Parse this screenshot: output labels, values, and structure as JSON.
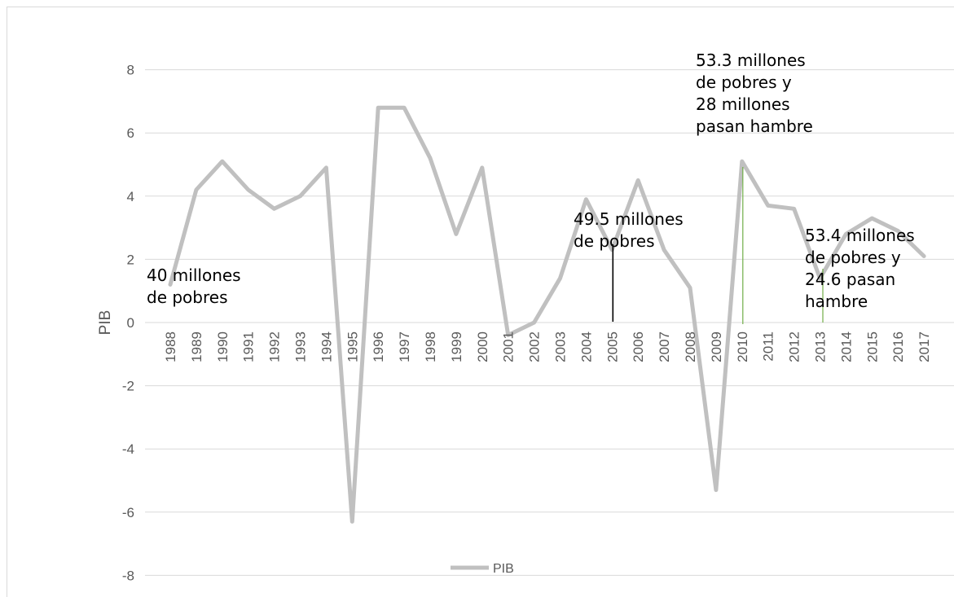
{
  "chart_data": {
    "type": "line",
    "title": "",
    "xlabel": "",
    "ylabel": "PIB",
    "ylim": [
      -8,
      8
    ],
    "yticks": [
      8,
      6,
      4,
      2,
      0,
      -2,
      -4,
      -6,
      -8
    ],
    "grid": true,
    "legend_position": "bottom",
    "x": [
      "1988",
      "1989",
      "1990",
      "1991",
      "1992",
      "1993",
      "1994",
      "1995",
      "1996",
      "1997",
      "1998",
      "1999",
      "2000",
      "2001",
      "2002",
      "2003",
      "2004",
      "2005",
      "2006",
      "2007",
      "2008",
      "2009",
      "2010",
      "2011",
      "2012",
      "2013",
      "2014",
      "2015",
      "2016",
      "2017"
    ],
    "series": [
      {
        "name": "PIB",
        "color": "#c0c0c0",
        "values": [
          1.2,
          4.2,
          5.1,
          4.2,
          3.6,
          4.0,
          4.9,
          -6.3,
          6.8,
          6.8,
          5.2,
          2.8,
          4.9,
          -0.4,
          0.0,
          1.4,
          3.9,
          2.3,
          4.5,
          2.3,
          1.1,
          -5.3,
          5.1,
          3.7,
          3.6,
          1.4,
          2.8,
          3.3,
          2.9,
          2.1
        ]
      }
    ],
    "annotations": [
      {
        "year": "1988",
        "lines": [
          "40 millones",
          "de pobres"
        ],
        "line_color": ""
      },
      {
        "year": "2005",
        "lines": [
          "49.5 millones",
          "de pobres"
        ],
        "line_color": "#000000"
      },
      {
        "year": "2010",
        "lines": [
          "53.3 millones",
          "de pobres y",
          "28 millones",
          "pasan hambre"
        ],
        "line_color": "#70ad47"
      },
      {
        "year": "2012",
        "lines": [
          "53.4 millones",
          "de pobres y",
          "24.6 pasan",
          "hambre"
        ],
        "line_color": "#70ad47"
      }
    ]
  }
}
